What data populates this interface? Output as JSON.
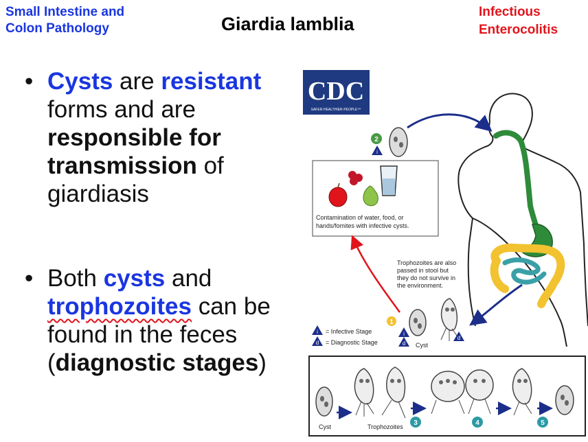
{
  "header": {
    "topic": "Small Intestine and\nColon Pathology",
    "title": "Giardia lamblia",
    "section": "Infectious\nEnterocolitis"
  },
  "bullets": [
    {
      "b1_w1": "Cysts",
      "b1_t1": " are ",
      "b1_w2": "resistant",
      "b1_t2": " forms and are ",
      "b1_w3": "responsible for transmission",
      "b1_t3": " of giardiasis"
    },
    {
      "b2_t1": "Both ",
      "b2_w1": "cysts",
      "b2_t2": " and ",
      "b2_w2": "trophozoites",
      "b2_t3": " can be found in the feces (",
      "b2_w3": "diagnostic stages",
      "b2_t4": ")"
    }
  ],
  "diagram": {
    "logo_text": "CDC",
    "logo_tagline": "SAFER·HEALTHIER·PEOPLE™",
    "contamination_line1": "Contamination of water, food, or",
    "contamination_line2": "hands/fomites with infective cysts.",
    "note_line1": "Trophozoites are also",
    "note_line2": "passed in stool but",
    "note_line3": "they do not survive in",
    "note_line4": "the environment.",
    "legend_infective": "= Infective Stage",
    "legend_diagnostic": "= Diagnostic Stage",
    "label_cyst": "Cyst",
    "label_cyst_bottom": "Cyst",
    "label_trophozoites": "Trophozoites",
    "step_1": "1",
    "step_2": "2",
    "step_3": "3",
    "step_4": "4",
    "step_5": "5",
    "mark_i": "i",
    "mark_d": "d",
    "colors": {
      "accent_blue": "#1a36e0",
      "accent_red": "#e1141c",
      "gut_green": "#2e8b3a",
      "colon_yellow": "#f2c230",
      "small_intestine_teal": "#3aa0a8",
      "arrow_navy": "#1c2e8a",
      "step_green": "#4a9a45",
      "step_teal": "#2c9aa5",
      "step_yellow": "#f2c230",
      "logo_navy": "#1f3a80"
    },
    "icons": [
      "cdc-logo",
      "human-silhouette",
      "digestive-tract",
      "cyst",
      "trophozoite",
      "apple",
      "pear",
      "raspberries",
      "water-glass",
      "infective-stage-triangle",
      "diagnostic-stage-triangle"
    ]
  }
}
